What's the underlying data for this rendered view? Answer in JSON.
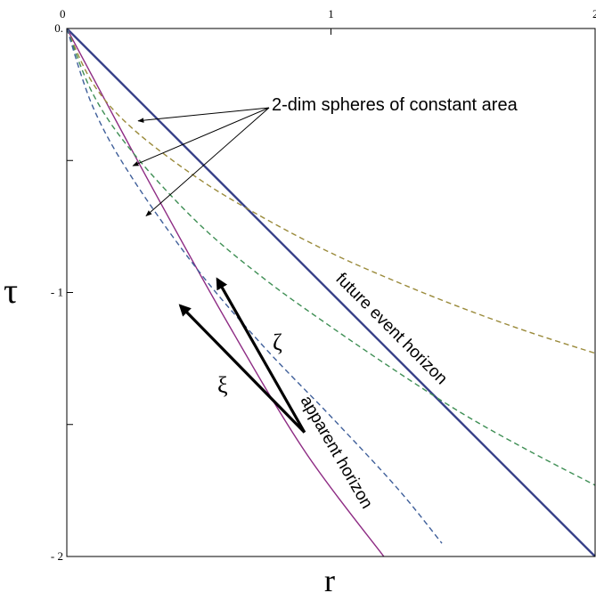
{
  "chart_data": {
    "type": "line",
    "xlabel": "r",
    "ylabel": "τ",
    "xlim": [
      0,
      2
    ],
    "ylim": [
      -2,
      0
    ],
    "x_ticks": [
      {
        "value": 0,
        "label": "0"
      },
      {
        "value": 1,
        "label": "1"
      },
      {
        "value": 2,
        "label": "2"
      }
    ],
    "y_ticks": [
      {
        "value": 0,
        "label": "0."
      },
      {
        "value": -1,
        "label": "- 1"
      },
      {
        "value": -2,
        "label": "- 2"
      }
    ],
    "y_minor_ticks": [
      -0.5,
      -1.5
    ],
    "series": [
      {
        "name": "future event horizon",
        "style": "solid",
        "color": "#39428a",
        "x": [
          0,
          2
        ],
        "y": [
          0,
          -2
        ]
      },
      {
        "name": "apparent horizon",
        "style": "solid",
        "color": "#8e2c84",
        "x": [
          0,
          0.3,
          0.6,
          0.9,
          1.2
        ],
        "y": [
          0,
          -0.56,
          -1.1,
          -1.6,
          -2.0
        ]
      },
      {
        "style": "dashed",
        "color": "#9a8a3a",
        "x": [
          0,
          0.1,
          0.25,
          0.5,
          0.75,
          1.0,
          1.25,
          1.5,
          1.75,
          2.0
        ],
        "y": [
          0,
          -0.21,
          -0.38,
          -0.57,
          -0.72,
          -0.85,
          -0.96,
          -1.06,
          -1.15,
          -1.23
        ]
      },
      {
        "style": "dashed",
        "color": "#3f8f55",
        "x": [
          0,
          0.1,
          0.25,
          0.5,
          0.75,
          1.0,
          1.25,
          1.5,
          1.75,
          2.0
        ],
        "y": [
          0,
          -0.25,
          -0.47,
          -0.74,
          -0.95,
          -1.13,
          -1.3,
          -1.46,
          -1.6,
          -1.73
        ]
      },
      {
        "style": "dashed",
        "color": "#3f5f9a",
        "x": [
          0,
          0.1,
          0.25,
          0.5,
          0.75,
          1.0,
          1.25,
          1.42
        ],
        "y": [
          0,
          -0.3,
          -0.57,
          -0.92,
          -1.21,
          -1.47,
          -1.74,
          -1.95
        ]
      }
    ],
    "annotations": [
      {
        "text": "2-dim spheres of constant area",
        "color": "#000000"
      },
      {
        "text": "future event horizon",
        "color": "#2020c0"
      },
      {
        "text": "apparent horizon",
        "color": "#a020a0"
      },
      {
        "text": "ζ",
        "color": "#000000"
      },
      {
        "text": "ξ",
        "color": "#000000"
      }
    ],
    "vectors": [
      {
        "name": "zeta",
        "from": [
          0.9,
          -1.53
        ],
        "to": [
          0.57,
          -0.95
        ]
      },
      {
        "name": "xi",
        "from": [
          0.9,
          -1.53
        ],
        "to": [
          0.43,
          -1.05
        ]
      }
    ],
    "annotation_arrow_targets": [
      {
        "x": 0.27,
        "y": -0.35
      },
      {
        "x": 0.25,
        "y": -0.52
      },
      {
        "x": 0.3,
        "y": -0.71
      }
    ],
    "grid": false
  }
}
